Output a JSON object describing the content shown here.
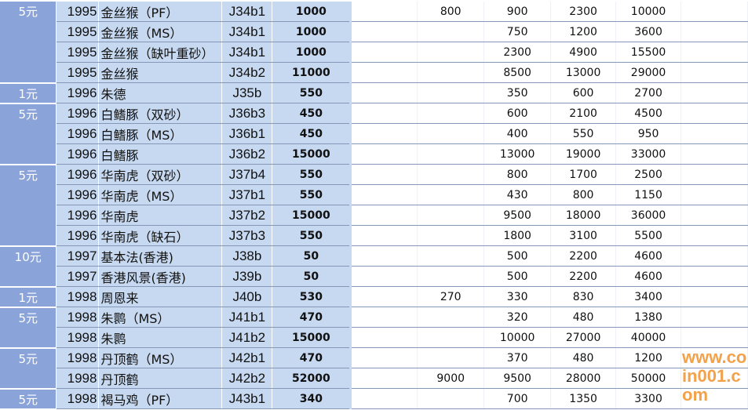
{
  "groups": [
    {
      "denomination": "5元",
      "rows": [
        [
          "1995",
          "金丝猴（PF）",
          "J34b1",
          "1000",
          "",
          "800",
          "900",
          "2300",
          "10000",
          ""
        ],
        [
          "1995",
          "金丝猴（MS）",
          "J34b1",
          "1000",
          "",
          "",
          "750",
          "1200",
          "3600",
          ""
        ],
        [
          "1995",
          "金丝猴（缺叶重砂）",
          "J34b1",
          "1000",
          "",
          "",
          "2300",
          "4900",
          "15500",
          ""
        ],
        [
          "1995",
          "金丝猴",
          "J34b2",
          "11000",
          "",
          "",
          "8500",
          "13000",
          "29000",
          ""
        ]
      ]
    },
    {
      "denomination": "1元",
      "rows": [
        [
          "1996",
          "朱德",
          "J35b",
          "550",
          "",
          "",
          "350",
          "600",
          "2700",
          ""
        ]
      ]
    },
    {
      "denomination": "5元",
      "rows": [
        [
          "1996",
          "白鳍豚（双砂）",
          "J36b3",
          "450",
          "",
          "",
          "600",
          "2100",
          "4500",
          ""
        ],
        [
          "1996",
          "白鳍豚（MS）",
          "J36b1",
          "450",
          "",
          "",
          "400",
          "550",
          "950",
          ""
        ],
        [
          "1996",
          "白鳍豚",
          "J36b2",
          "15000",
          "",
          "",
          "13000",
          "19000",
          "33000",
          ""
        ]
      ]
    },
    {
      "denomination": "5元",
      "rows": [
        [
          "1996",
          "华南虎（双砂）",
          "J37b4",
          "550",
          "",
          "",
          "800",
          "1700",
          "2500",
          ""
        ],
        [
          "1996",
          "华南虎（MS）",
          "J37b1",
          "550",
          "",
          "",
          "430",
          "800",
          "1150",
          ""
        ],
        [
          "1996",
          "华南虎",
          "J37b2",
          "15000",
          "",
          "",
          "9500",
          "18000",
          "36000",
          ""
        ],
        [
          "1996",
          "华南虎（缺石）",
          "J37b3",
          "550",
          "",
          "",
          "1800",
          "3100",
          "5500",
          ""
        ]
      ]
    },
    {
      "denomination": "10元",
      "rows": [
        [
          "1997",
          "基本法(香港)",
          "J38b",
          "50",
          "",
          "",
          "500",
          "2200",
          "4600",
          ""
        ],
        [
          "1997",
          "香港风景(香港)",
          "J39b",
          "50",
          "",
          "",
          "500",
          "2200",
          "4600",
          ""
        ]
      ]
    },
    {
      "denomination": "1元",
      "rows": [
        [
          "1998",
          "周恩来",
          "J40b",
          "530",
          "",
          "270",
          "330",
          "830",
          "3400",
          ""
        ]
      ]
    },
    {
      "denomination": "5元",
      "rows": [
        [
          "1998",
          "朱鹮（MS）",
          "J41b1",
          "470",
          "",
          "",
          "320",
          "480",
          "1380",
          ""
        ],
        [
          "1998",
          "朱鹮",
          "J41b2",
          "15000",
          "",
          "",
          "10000",
          "27000",
          "40000",
          ""
        ]
      ]
    },
    {
      "denomination": "5元",
      "rows": [
        [
          "1998",
          "丹顶鹤（MS）",
          "J42b1",
          "470",
          "",
          "",
          "370",
          "480",
          "1200",
          ""
        ],
        [
          "1998",
          "丹顶鹤",
          "J42b2",
          "52000",
          "",
          "9000",
          "9500",
          "28000",
          "50000",
          ""
        ]
      ]
    },
    {
      "denomination": "5元",
      "rows": [
        [
          "1998",
          "褐马鸡（PF）",
          "J43b1",
          "340",
          "",
          "",
          "700",
          "1350",
          "3300",
          ""
        ]
      ]
    }
  ],
  "watermark": "www.coin001.com"
}
